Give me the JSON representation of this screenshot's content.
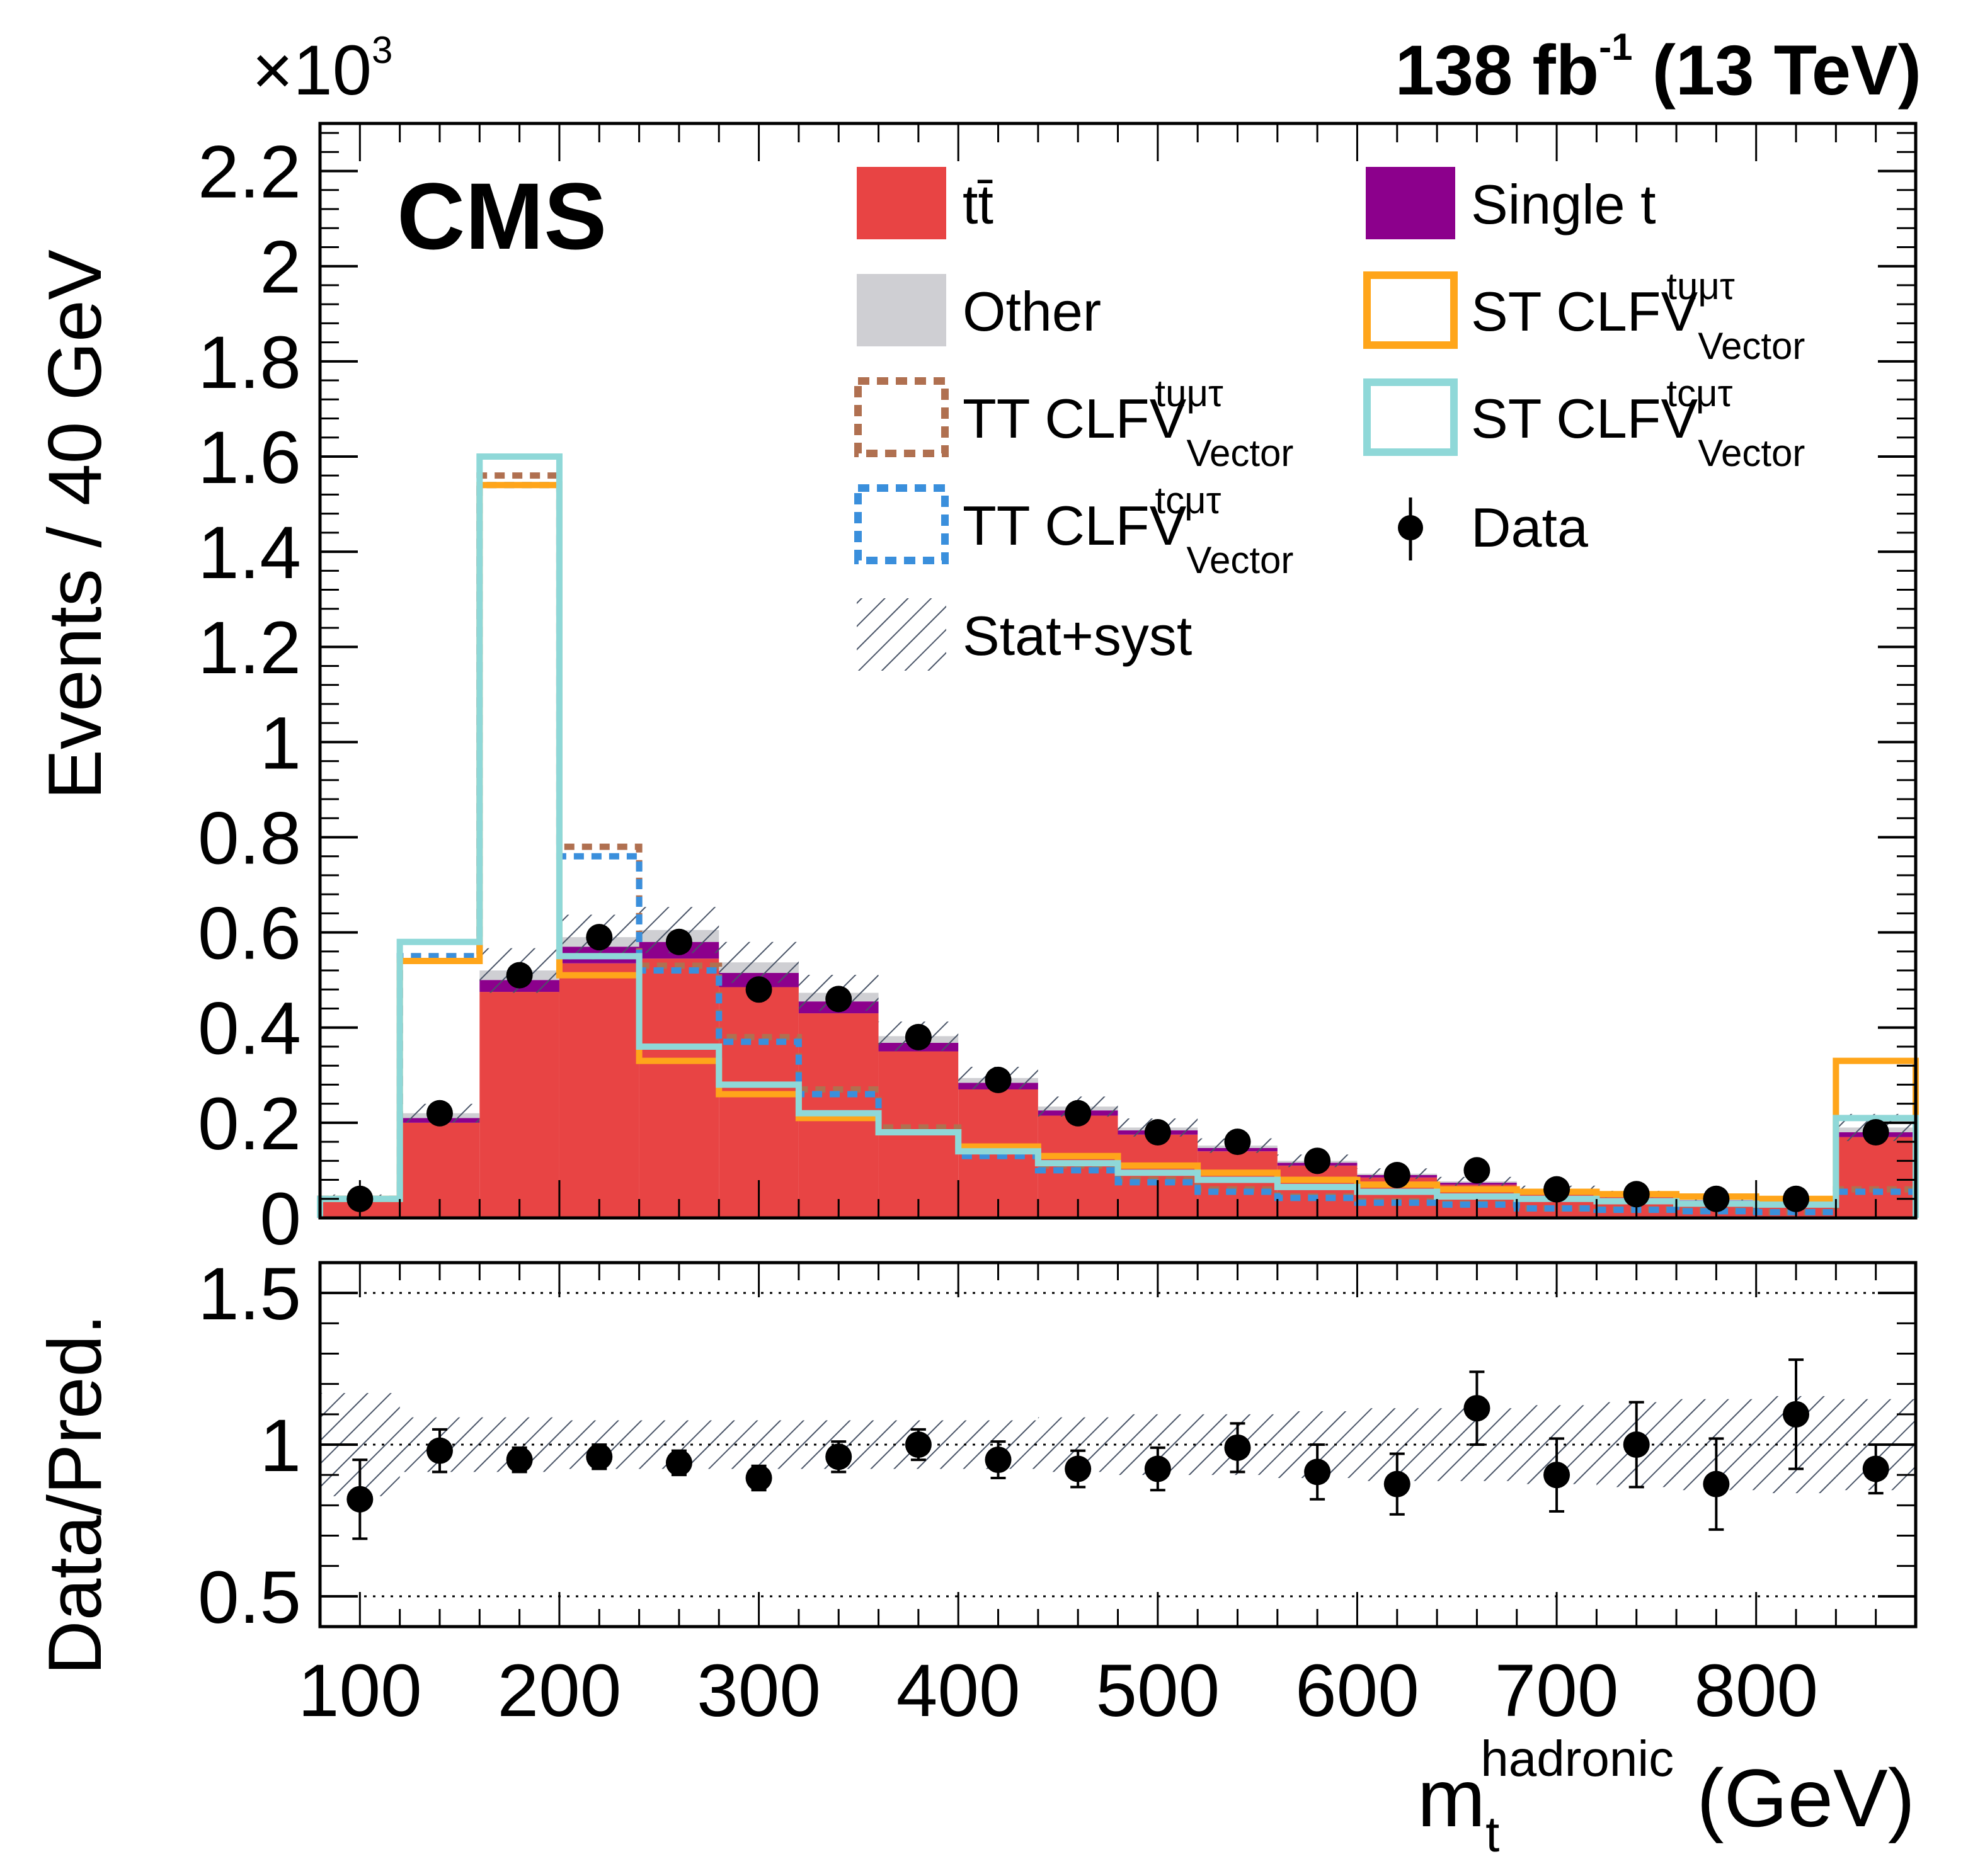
{
  "chart_data": {
    "type": "bar",
    "stacked": true,
    "lumi_label": {
      "main": "138 fb",
      "sup": "-1",
      "suffix": " (13 TeV)"
    },
    "experiment_label": "CMS",
    "exponent_label": {
      "base": "×10",
      "sup": "3"
    },
    "ylabel": "Events / 40 GeV",
    "ratio_ylabel": "Data/Pred.",
    "xlabel": {
      "main": "m",
      "sub": "t",
      "sup": "hadronic",
      "unit": " (GeV)"
    },
    "xlim": [
      80,
      880
    ],
    "ylim": [
      0,
      2.3
    ],
    "ratio_ylim": [
      0.4,
      1.6
    ],
    "x_tick_labels": [
      "100",
      "200",
      "300",
      "400",
      "500",
      "600",
      "700",
      "800"
    ],
    "x_ticks": [
      100,
      200,
      300,
      400,
      500,
      600,
      700,
      800
    ],
    "y_tick_labels": [
      "0",
      "0.2",
      "0.4",
      "0.6",
      "0.8",
      "1",
      "1.2",
      "1.4",
      "1.6",
      "1.8",
      "2",
      "2.2"
    ],
    "y_ticks": [
      0,
      0.2,
      0.4,
      0.6,
      0.8,
      1.0,
      1.2,
      1.4,
      1.6,
      1.8,
      2.0,
      2.2
    ],
    "ratio_tick_labels": [
      "0.5",
      "1",
      "1.5"
    ],
    "ratio_ticks": [
      0.5,
      1.0,
      1.5
    ],
    "ratio_reference_lines": [
      0.5,
      1.0,
      1.5
    ],
    "bin_edges": [
      80,
      120,
      160,
      200,
      240,
      280,
      320,
      360,
      400,
      440,
      480,
      520,
      560,
      600,
      640,
      680,
      720,
      760,
      800,
      840,
      880
    ],
    "bin_centers": [
      100,
      140,
      180,
      220,
      260,
      300,
      340,
      380,
      420,
      460,
      500,
      540,
      580,
      620,
      660,
      700,
      740,
      780,
      820,
      860
    ],
    "stack": [
      {
        "name": "tt̄",
        "color": "#e84444",
        "values": [
          0.035,
          0.2,
          0.475,
          0.535,
          0.545,
          0.485,
          0.43,
          0.35,
          0.27,
          0.215,
          0.175,
          0.14,
          0.11,
          0.085,
          0.07,
          0.055,
          0.045,
          0.035,
          0.03,
          0.17
        ]
      },
      {
        "name": "Single t",
        "color": "#8c008c",
        "values": [
          0.003,
          0.01,
          0.025,
          0.035,
          0.035,
          0.03,
          0.025,
          0.018,
          0.014,
          0.011,
          0.009,
          0.007,
          0.006,
          0.005,
          0.004,
          0.003,
          0.003,
          0.002,
          0.002,
          0.01
        ]
      },
      {
        "name": "Other",
        "color": "#cfcfd3",
        "values": [
          0.004,
          0.01,
          0.02,
          0.02,
          0.025,
          0.022,
          0.018,
          0.014,
          0.01,
          0.008,
          0.006,
          0.005,
          0.004,
          0.003,
          0.003,
          0.002,
          0.002,
          0.002,
          0.002,
          0.01
        ]
      }
    ],
    "signals": [
      {
        "name": "TT CLFV",
        "sub": "Vector",
        "sup": "tuμτ",
        "color": "#b07050",
        "style": "dotted",
        "values": [
          0.04,
          0.55,
          1.56,
          0.78,
          0.53,
          0.38,
          0.27,
          0.19,
          0.14,
          0.11,
          0.08,
          0.06,
          0.045,
          0.035,
          0.03,
          0.02,
          0.018,
          0.015,
          0.012,
          0.06
        ]
      },
      {
        "name": "TT CLFV",
        "sub": "Vector",
        "sup": "tcμτ",
        "color": "#3a8fdc",
        "style": "dotted",
        "values": [
          0.04,
          0.55,
          1.54,
          0.76,
          0.52,
          0.37,
          0.26,
          0.18,
          0.13,
          0.1,
          0.075,
          0.055,
          0.042,
          0.032,
          0.028,
          0.02,
          0.017,
          0.014,
          0.012,
          0.055
        ]
      },
      {
        "name": "ST CLFV",
        "sub": "Vector",
        "sup": "tuμτ",
        "color": "#ffa51a",
        "style": "solid",
        "values": [
          0.04,
          0.54,
          1.54,
          0.51,
          0.33,
          0.26,
          0.21,
          0.18,
          0.15,
          0.13,
          0.11,
          0.095,
          0.08,
          0.07,
          0.06,
          0.055,
          0.05,
          0.045,
          0.04,
          0.33
        ]
      },
      {
        "name": "ST CLFV",
        "sub": "Vector",
        "sup": "tcμτ",
        "color": "#8fd8d8",
        "style": "solid",
        "values": [
          0.04,
          0.58,
          1.6,
          0.55,
          0.36,
          0.28,
          0.22,
          0.18,
          0.14,
          0.115,
          0.095,
          0.08,
          0.065,
          0.055,
          0.045,
          0.04,
          0.035,
          0.03,
          0.028,
          0.21
        ]
      }
    ],
    "data": {
      "name": "Data",
      "values": [
        0.04,
        0.22,
        0.51,
        0.59,
        0.58,
        0.48,
        0.46,
        0.38,
        0.29,
        0.22,
        0.18,
        0.16,
        0.12,
        0.09,
        0.1,
        0.06,
        0.05,
        0.04,
        0.04,
        0.18
      ]
    },
    "uncertainty": {
      "name": "Stat+syst",
      "rel": [
        0.17,
        0.09,
        0.09,
        0.08,
        0.08,
        0.08,
        0.08,
        0.08,
        0.08,
        0.09,
        0.1,
        0.1,
        0.11,
        0.12,
        0.12,
        0.13,
        0.14,
        0.15,
        0.16,
        0.15
      ]
    },
    "ratio": {
      "values": [
        0.82,
        0.98,
        0.95,
        0.96,
        0.94,
        0.89,
        0.96,
        1.0,
        0.95,
        0.92,
        0.92,
        0.99,
        0.91,
        0.87,
        1.12,
        0.9,
        1.0,
        0.87,
        1.1,
        0.92
      ],
      "err": [
        0.13,
        0.07,
        0.04,
        0.04,
        0.04,
        0.04,
        0.05,
        0.05,
        0.06,
        0.06,
        0.07,
        0.08,
        0.09,
        0.1,
        0.12,
        0.12,
        0.14,
        0.15,
        0.18,
        0.08
      ]
    }
  }
}
